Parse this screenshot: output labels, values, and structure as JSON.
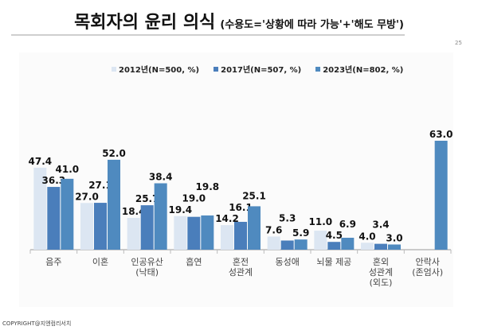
{
  "title": {
    "main": "목회자의 윤리 의식",
    "sub": "(수용도='상황에 따라 가능'+'해도 무방')"
  },
  "page_number": "25",
  "footer": "COPYRIGHT@지엔컴리서치",
  "chart_data": {
    "type": "bar",
    "title": "목회자의 윤리 의식",
    "categories": [
      "음주",
      "이혼",
      "인공유산\n(낙태)",
      "흡연",
      "혼전\n성관계",
      "동성애",
      "뇌물 제공",
      "혼외\n성관계\n(외도)",
      "안락사\n(존엄사)"
    ],
    "series": [
      {
        "name": "2012년(N=500, %)",
        "color": "#dce6f2",
        "values": [
          47.4,
          27.0,
          18.4,
          19.4,
          14.2,
          7.6,
          11.0,
          4.0,
          null
        ]
      },
      {
        "name": "2017년(N=507, %)",
        "color": "#4a7ebb",
        "values": [
          36.3,
          27.1,
          25.7,
          19.0,
          16.1,
          5.3,
          4.5,
          3.4,
          null
        ]
      },
      {
        "name": "2023년(N=802, %)",
        "color": "#4f8abf",
        "values": [
          41.0,
          52.0,
          38.4,
          19.8,
          25.1,
          5.9,
          6.9,
          3.0,
          63.0
        ]
      }
    ],
    "ylim": [
      0,
      70
    ],
    "xlabel": "",
    "ylabel": "",
    "legend": "top",
    "grid": false
  }
}
